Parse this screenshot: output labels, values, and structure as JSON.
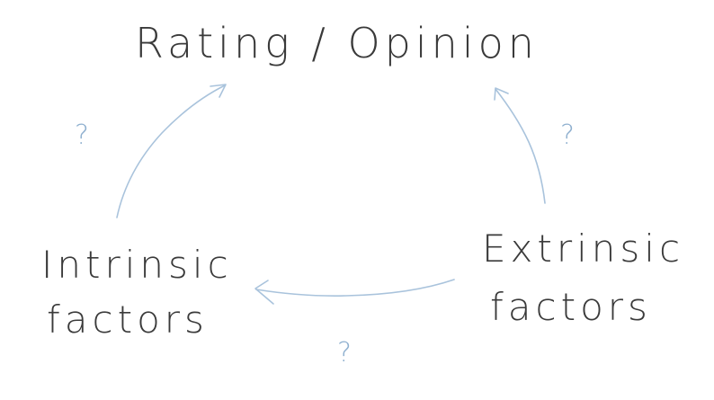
{
  "diagram": {
    "nodes": {
      "top": "Rating / Opinion",
      "left": [
        "Intrinsic",
        "factors"
      ],
      "right": [
        "Extrinsic",
        "factors"
      ]
    },
    "edge_labels": {
      "left_to_top": "?",
      "right_to_top": "?",
      "right_to_left": "?"
    },
    "edges": [
      {
        "from": "Intrinsic factors",
        "to": "Rating / Opinion"
      },
      {
        "from": "Extrinsic factors",
        "to": "Rating / Opinion"
      },
      {
        "from": "Extrinsic factors",
        "to": "Intrinsic factors"
      }
    ],
    "colors": {
      "text": "#3a3a3a",
      "arrow": "#a9c3dc",
      "question_mark": "#8fb0cf"
    }
  }
}
